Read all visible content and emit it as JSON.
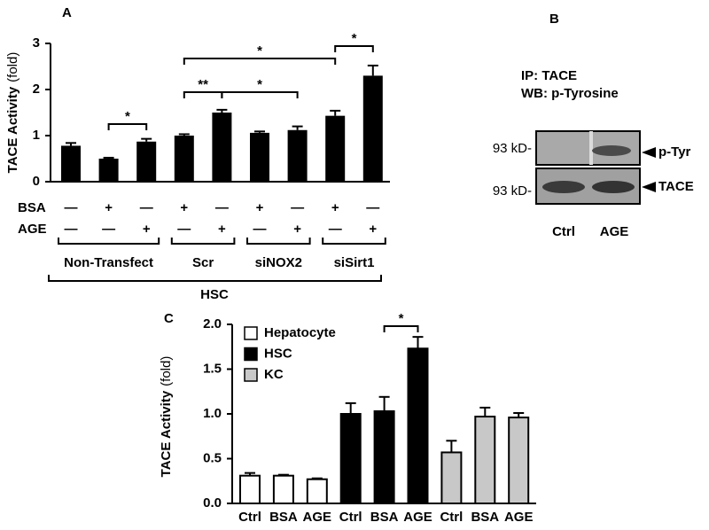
{
  "chart_data": [
    {
      "type": "bar",
      "panel_label": "A",
      "ylabel": "TACE Activity",
      "ylabel_units": "(fold)",
      "categories": [
        null,
        null,
        null,
        null,
        null,
        null,
        null,
        null,
        null
      ],
      "values": [
        0.78,
        0.5,
        0.87,
        1.0,
        1.5,
        1.06,
        1.12,
        1.43,
        2.3
      ],
      "errors": [
        0.06,
        0.02,
        0.06,
        0.03,
        0.06,
        0.03,
        0.08,
        0.11,
        0.22
      ],
      "color": "#000000",
      "ylim": [
        0,
        3
      ],
      "yticks": [
        0,
        1,
        2,
        3
      ],
      "treatments": [
        {
          "name": "BSA",
          "signs": [
            "—",
            "+",
            "—",
            "+",
            "—",
            "+",
            "—",
            "+",
            "—"
          ]
        },
        {
          "name": "AGE",
          "signs": [
            "—",
            "—",
            "+",
            "—",
            "+",
            "—",
            "+",
            "—",
            "+"
          ]
        }
      ],
      "groups": [
        "Non-Transfect",
        "Scr",
        "siNOX2",
        "siSirt1"
      ],
      "group_all": "HSC",
      "annotations": [
        "*",
        "**",
        "*",
        "*",
        "*"
      ]
    },
    {
      "type": "grouped_bar",
      "panel_label": "C",
      "ylabel": "TACE Activity",
      "ylabel_units": "(fold)",
      "categories": [
        "Ctrl",
        "BSA",
        "AGE",
        "Ctrl",
        "BSA",
        "AGE",
        "Ctrl",
        "BSA",
        "AGE"
      ],
      "series": [
        {
          "name": "Hepatocyte",
          "color": "#ffffff",
          "values": [
            0.31,
            0.31,
            0.27,
            null,
            null,
            null,
            null,
            null,
            null
          ],
          "errors": [
            0.03,
            0.01,
            0.01,
            null,
            null,
            null,
            null,
            null,
            null
          ]
        },
        {
          "name": "HSC",
          "color": "#000000",
          "values": [
            null,
            null,
            null,
            1.0,
            1.03,
            1.73,
            null,
            null,
            null
          ],
          "errors": [
            null,
            null,
            null,
            0.12,
            0.16,
            0.13,
            null,
            null,
            null
          ]
        },
        {
          "name": "KC",
          "color": "#c8c8c8",
          "values": [
            null,
            null,
            null,
            null,
            null,
            null,
            0.57,
            0.97,
            0.96
          ],
          "errors": [
            null,
            null,
            null,
            null,
            null,
            null,
            0.13,
            0.1,
            0.05
          ]
        }
      ],
      "ylim": [
        0,
        2
      ],
      "yticks": [
        {
          "value": 0,
          "label": "0.0"
        },
        0.5,
        {
          "value": 1,
          "label": "1.0"
        },
        1.5,
        {
          "value": 2,
          "label": "2.0"
        }
      ],
      "annotations": [
        "*"
      ]
    }
  ],
  "blot": {
    "panel_label": "B",
    "ip": "IP: TACE",
    "wb": "WB: p-Tyrosine",
    "rows": [
      {
        "marker": "93 kD-",
        "band": "p-Tyr"
      },
      {
        "marker": "93 kD-",
        "band": "TACE"
      }
    ],
    "lanes": [
      "Ctrl",
      "AGE"
    ]
  }
}
